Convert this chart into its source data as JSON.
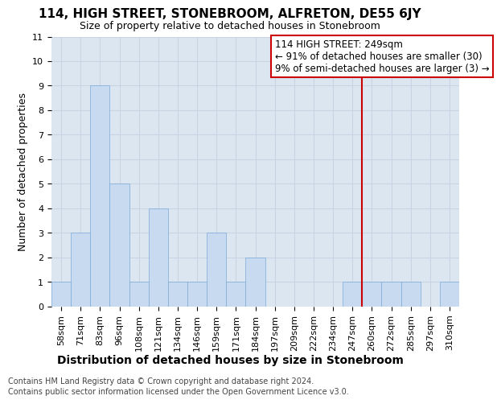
{
  "title": "114, HIGH STREET, STONEBROOM, ALFRETON, DE55 6JY",
  "subtitle": "Size of property relative to detached houses in Stonebroom",
  "xlabel_bottom": "Distribution of detached houses by size in Stonebroom",
  "ylabel": "Number of detached properties",
  "footnote1": "Contains HM Land Registry data © Crown copyright and database right 2024.",
  "footnote2": "Contains public sector information licensed under the Open Government Licence v3.0.",
  "bin_labels": [
    "58sqm",
    "71sqm",
    "83sqm",
    "96sqm",
    "108sqm",
    "121sqm",
    "134sqm",
    "146sqm",
    "159sqm",
    "171sqm",
    "184sqm",
    "197sqm",
    "209sqm",
    "222sqm",
    "234sqm",
    "247sqm",
    "260sqm",
    "272sqm",
    "285sqm",
    "297sqm",
    "310sqm"
  ],
  "bar_heights": [
    1,
    3,
    9,
    5,
    1,
    4,
    1,
    1,
    3,
    1,
    2,
    0,
    0,
    0,
    0,
    1,
    1,
    1,
    1,
    0,
    1
  ],
  "bar_color": "#c8daf0",
  "bar_edgecolor": "#7aaad8",
  "grid_color": "#c8d4e4",
  "bg_color": "#dce6f1",
  "red_line_index": 15.5,
  "annotation_line1": "114 HIGH STREET: 249sqm",
  "annotation_line2": "← 91% of detached houses are smaller (30)",
  "annotation_line3": "9% of semi-detached houses are larger (3) →",
  "red_color": "#cc0000",
  "ylim_max": 11,
  "title_fontsize": 11,
  "subtitle_fontsize": 9,
  "ylabel_fontsize": 9,
  "tick_fontsize": 8,
  "xlabel_fontsize": 10,
  "footnote_fontsize": 7,
  "annotation_fontsize": 8.5
}
